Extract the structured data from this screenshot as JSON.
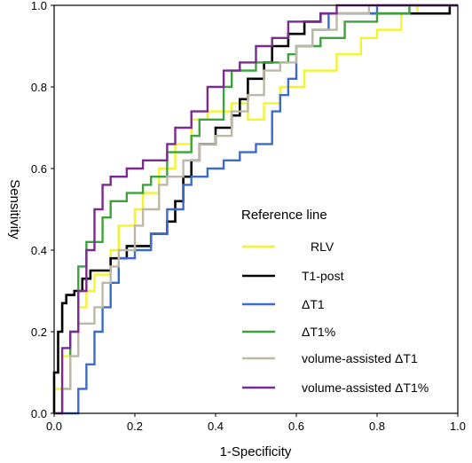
{
  "chart_data": {
    "type": "line",
    "title": "",
    "xlabel": "1-Specificity",
    "ylabel": "Sensitivity",
    "xlim": [
      0,
      1
    ],
    "ylim": [
      0,
      1
    ],
    "xticks": [
      "0.0",
      "0.2",
      "0.4",
      "0.6",
      "0.8",
      "1.0"
    ],
    "yticks": [
      "0.0",
      "0.2",
      "0.4",
      "0.6",
      "0.8",
      "1.0"
    ],
    "grid": false,
    "legend_title": "Reference line",
    "legend_position": "lower-right",
    "series": [
      {
        "name": "RLV",
        "color": "#f4f42c",
        "points": [
          [
            0,
            0
          ],
          [
            0,
            0.06
          ],
          [
            0.02,
            0.06
          ],
          [
            0.02,
            0.14
          ],
          [
            0.04,
            0.14
          ],
          [
            0.04,
            0.2
          ],
          [
            0.06,
            0.2
          ],
          [
            0.06,
            0.26
          ],
          [
            0.08,
            0.26
          ],
          [
            0.08,
            0.3
          ],
          [
            0.1,
            0.3
          ],
          [
            0.1,
            0.34
          ],
          [
            0.14,
            0.34
          ],
          [
            0.14,
            0.4
          ],
          [
            0.16,
            0.4
          ],
          [
            0.16,
            0.46
          ],
          [
            0.2,
            0.46
          ],
          [
            0.2,
            0.5
          ],
          [
            0.22,
            0.5
          ],
          [
            0.22,
            0.54
          ],
          [
            0.26,
            0.54
          ],
          [
            0.26,
            0.6
          ],
          [
            0.3,
            0.6
          ],
          [
            0.3,
            0.66
          ],
          [
            0.34,
            0.66
          ],
          [
            0.34,
            0.72
          ],
          [
            0.38,
            0.72
          ],
          [
            0.38,
            0.74
          ],
          [
            0.44,
            0.74
          ],
          [
            0.44,
            0.76
          ],
          [
            0.48,
            0.76
          ],
          [
            0.48,
            0.72
          ],
          [
            0.52,
            0.72
          ],
          [
            0.52,
            0.76
          ],
          [
            0.56,
            0.76
          ],
          [
            0.56,
            0.8
          ],
          [
            0.62,
            0.8
          ],
          [
            0.62,
            0.84
          ],
          [
            0.7,
            0.84
          ],
          [
            0.7,
            0.88
          ],
          [
            0.76,
            0.88
          ],
          [
            0.76,
            0.92
          ],
          [
            0.8,
            0.92
          ],
          [
            0.8,
            0.94
          ],
          [
            0.86,
            0.94
          ],
          [
            0.86,
            0.98
          ],
          [
            0.9,
            0.98
          ],
          [
            0.9,
            1
          ],
          [
            1,
            1
          ]
        ]
      },
      {
        "name": "T1-post",
        "color": "#000000",
        "points": [
          [
            0,
            0
          ],
          [
            0,
            0.1
          ],
          [
            0.01,
            0.1
          ],
          [
            0.01,
            0.2
          ],
          [
            0.02,
            0.2
          ],
          [
            0.02,
            0.27
          ],
          [
            0.03,
            0.27
          ],
          [
            0.03,
            0.29
          ],
          [
            0.05,
            0.29
          ],
          [
            0.05,
            0.3
          ],
          [
            0.07,
            0.3
          ],
          [
            0.07,
            0.33
          ],
          [
            0.09,
            0.33
          ],
          [
            0.09,
            0.35
          ],
          [
            0.14,
            0.35
          ],
          [
            0.14,
            0.38
          ],
          [
            0.18,
            0.38
          ],
          [
            0.18,
            0.41
          ],
          [
            0.24,
            0.41
          ],
          [
            0.24,
            0.44
          ],
          [
            0.28,
            0.44
          ],
          [
            0.28,
            0.47
          ],
          [
            0.3,
            0.47
          ],
          [
            0.3,
            0.52
          ],
          [
            0.32,
            0.52
          ],
          [
            0.32,
            0.58
          ],
          [
            0.34,
            0.58
          ],
          [
            0.34,
            0.62
          ],
          [
            0.36,
            0.62
          ],
          [
            0.36,
            0.66
          ],
          [
            0.4,
            0.66
          ],
          [
            0.4,
            0.7
          ],
          [
            0.44,
            0.7
          ],
          [
            0.44,
            0.73
          ],
          [
            0.46,
            0.73
          ],
          [
            0.46,
            0.77
          ],
          [
            0.48,
            0.77
          ],
          [
            0.48,
            0.82
          ],
          [
            0.52,
            0.82
          ],
          [
            0.52,
            0.86
          ],
          [
            0.54,
            0.86
          ],
          [
            0.54,
            0.9
          ],
          [
            0.58,
            0.9
          ],
          [
            0.58,
            0.93
          ],
          [
            0.62,
            0.93
          ],
          [
            0.62,
            0.96
          ],
          [
            0.66,
            0.96
          ],
          [
            0.66,
            0.98
          ],
          [
            0.98,
            0.98
          ],
          [
            0.98,
            1
          ],
          [
            1,
            1
          ]
        ]
      },
      {
        "name": "ΔT1",
        "color": "#3d6bc8",
        "points": [
          [
            0,
            0
          ],
          [
            0.06,
            0
          ],
          [
            0.06,
            0.06
          ],
          [
            0.08,
            0.06
          ],
          [
            0.08,
            0.12
          ],
          [
            0.1,
            0.12
          ],
          [
            0.1,
            0.2
          ],
          [
            0.12,
            0.2
          ],
          [
            0.12,
            0.26
          ],
          [
            0.14,
            0.26
          ],
          [
            0.14,
            0.32
          ],
          [
            0.16,
            0.32
          ],
          [
            0.16,
            0.38
          ],
          [
            0.2,
            0.38
          ],
          [
            0.2,
            0.4
          ],
          [
            0.24,
            0.4
          ],
          [
            0.24,
            0.44
          ],
          [
            0.28,
            0.44
          ],
          [
            0.28,
            0.5
          ],
          [
            0.32,
            0.5
          ],
          [
            0.32,
            0.56
          ],
          [
            0.34,
            0.56
          ],
          [
            0.34,
            0.58
          ],
          [
            0.38,
            0.58
          ],
          [
            0.38,
            0.6
          ],
          [
            0.42,
            0.6
          ],
          [
            0.42,
            0.62
          ],
          [
            0.46,
            0.62
          ],
          [
            0.46,
            0.64
          ],
          [
            0.5,
            0.64
          ],
          [
            0.5,
            0.66
          ],
          [
            0.54,
            0.66
          ],
          [
            0.54,
            0.74
          ],
          [
            0.56,
            0.74
          ],
          [
            0.56,
            0.78
          ],
          [
            0.58,
            0.78
          ],
          [
            0.58,
            0.82
          ],
          [
            0.6,
            0.82
          ],
          [
            0.6,
            0.9
          ],
          [
            0.64,
            0.9
          ],
          [
            0.64,
            0.94
          ],
          [
            0.68,
            0.94
          ],
          [
            0.68,
            0.98
          ],
          [
            0.8,
            0.98
          ],
          [
            0.8,
            1
          ],
          [
            1,
            1
          ]
        ]
      },
      {
        "name": "ΔT1%",
        "color": "#3ca33c",
        "points": [
          [
            0,
            0
          ],
          [
            0.02,
            0
          ],
          [
            0.02,
            0.06
          ],
          [
            0.04,
            0.06
          ],
          [
            0.04,
            0.2
          ],
          [
            0.06,
            0.2
          ],
          [
            0.06,
            0.36
          ],
          [
            0.08,
            0.36
          ],
          [
            0.08,
            0.42
          ],
          [
            0.12,
            0.42
          ],
          [
            0.12,
            0.48
          ],
          [
            0.14,
            0.48
          ],
          [
            0.14,
            0.52
          ],
          [
            0.18,
            0.52
          ],
          [
            0.18,
            0.54
          ],
          [
            0.22,
            0.54
          ],
          [
            0.22,
            0.56
          ],
          [
            0.24,
            0.56
          ],
          [
            0.24,
            0.58
          ],
          [
            0.28,
            0.58
          ],
          [
            0.28,
            0.64
          ],
          [
            0.34,
            0.64
          ],
          [
            0.34,
            0.68
          ],
          [
            0.36,
            0.68
          ],
          [
            0.36,
            0.72
          ],
          [
            0.42,
            0.72
          ],
          [
            0.42,
            0.8
          ],
          [
            0.44,
            0.8
          ],
          [
            0.44,
            0.84
          ],
          [
            0.5,
            0.84
          ],
          [
            0.5,
            0.86
          ],
          [
            0.58,
            0.86
          ],
          [
            0.58,
            0.88
          ],
          [
            0.6,
            0.88
          ],
          [
            0.6,
            0.9
          ],
          [
            0.66,
            0.9
          ],
          [
            0.66,
            0.92
          ],
          [
            0.72,
            0.92
          ],
          [
            0.72,
            0.96
          ],
          [
            0.8,
            0.96
          ],
          [
            0.8,
            0.98
          ],
          [
            0.88,
            0.98
          ],
          [
            0.88,
            1
          ],
          [
            1,
            1
          ]
        ]
      },
      {
        "name": "volume-assisted ΔT1",
        "color": "#bdb8a6",
        "points": [
          [
            0,
            0
          ],
          [
            0.02,
            0
          ],
          [
            0.02,
            0.06
          ],
          [
            0.04,
            0.06
          ],
          [
            0.04,
            0.14
          ],
          [
            0.06,
            0.14
          ],
          [
            0.06,
            0.22
          ],
          [
            0.1,
            0.22
          ],
          [
            0.1,
            0.26
          ],
          [
            0.12,
            0.26
          ],
          [
            0.12,
            0.32
          ],
          [
            0.14,
            0.32
          ],
          [
            0.14,
            0.36
          ],
          [
            0.16,
            0.36
          ],
          [
            0.16,
            0.4
          ],
          [
            0.2,
            0.4
          ],
          [
            0.2,
            0.46
          ],
          [
            0.22,
            0.46
          ],
          [
            0.22,
            0.5
          ],
          [
            0.26,
            0.5
          ],
          [
            0.26,
            0.56
          ],
          [
            0.28,
            0.56
          ],
          [
            0.28,
            0.58
          ],
          [
            0.32,
            0.58
          ],
          [
            0.32,
            0.62
          ],
          [
            0.36,
            0.62
          ],
          [
            0.36,
            0.66
          ],
          [
            0.4,
            0.66
          ],
          [
            0.4,
            0.68
          ],
          [
            0.44,
            0.68
          ],
          [
            0.44,
            0.74
          ],
          [
            0.48,
            0.74
          ],
          [
            0.48,
            0.78
          ],
          [
            0.52,
            0.78
          ],
          [
            0.52,
            0.84
          ],
          [
            0.56,
            0.84
          ],
          [
            0.56,
            0.86
          ],
          [
            0.6,
            0.86
          ],
          [
            0.6,
            0.9
          ],
          [
            0.64,
            0.9
          ],
          [
            0.64,
            0.94
          ],
          [
            0.7,
            0.94
          ],
          [
            0.7,
            0.98
          ],
          [
            0.78,
            0.98
          ],
          [
            0.78,
            1
          ],
          [
            1,
            1
          ]
        ]
      },
      {
        "name": "volume-assisted ΔT1%",
        "color": "#7b2a92",
        "points": [
          [
            0,
            0
          ],
          [
            0.02,
            0
          ],
          [
            0.02,
            0.16
          ],
          [
            0.04,
            0.16
          ],
          [
            0.04,
            0.2
          ],
          [
            0.06,
            0.2
          ],
          [
            0.06,
            0.3
          ],
          [
            0.08,
            0.3
          ],
          [
            0.08,
            0.4
          ],
          [
            0.1,
            0.4
          ],
          [
            0.1,
            0.5
          ],
          [
            0.12,
            0.5
          ],
          [
            0.12,
            0.56
          ],
          [
            0.14,
            0.56
          ],
          [
            0.14,
            0.58
          ],
          [
            0.18,
            0.58
          ],
          [
            0.18,
            0.6
          ],
          [
            0.22,
            0.6
          ],
          [
            0.22,
            0.62
          ],
          [
            0.28,
            0.62
          ],
          [
            0.28,
            0.66
          ],
          [
            0.3,
            0.66
          ],
          [
            0.3,
            0.7
          ],
          [
            0.34,
            0.7
          ],
          [
            0.34,
            0.74
          ],
          [
            0.38,
            0.74
          ],
          [
            0.38,
            0.8
          ],
          [
            0.42,
            0.8
          ],
          [
            0.42,
            0.84
          ],
          [
            0.46,
            0.84
          ],
          [
            0.46,
            0.86
          ],
          [
            0.5,
            0.86
          ],
          [
            0.5,
            0.9
          ],
          [
            0.54,
            0.9
          ],
          [
            0.54,
            0.92
          ],
          [
            0.58,
            0.92
          ],
          [
            0.58,
            0.96
          ],
          [
            0.66,
            0.96
          ],
          [
            0.66,
            0.98
          ],
          [
            0.7,
            0.98
          ],
          [
            0.7,
            1
          ],
          [
            1,
            1
          ]
        ]
      }
    ]
  }
}
